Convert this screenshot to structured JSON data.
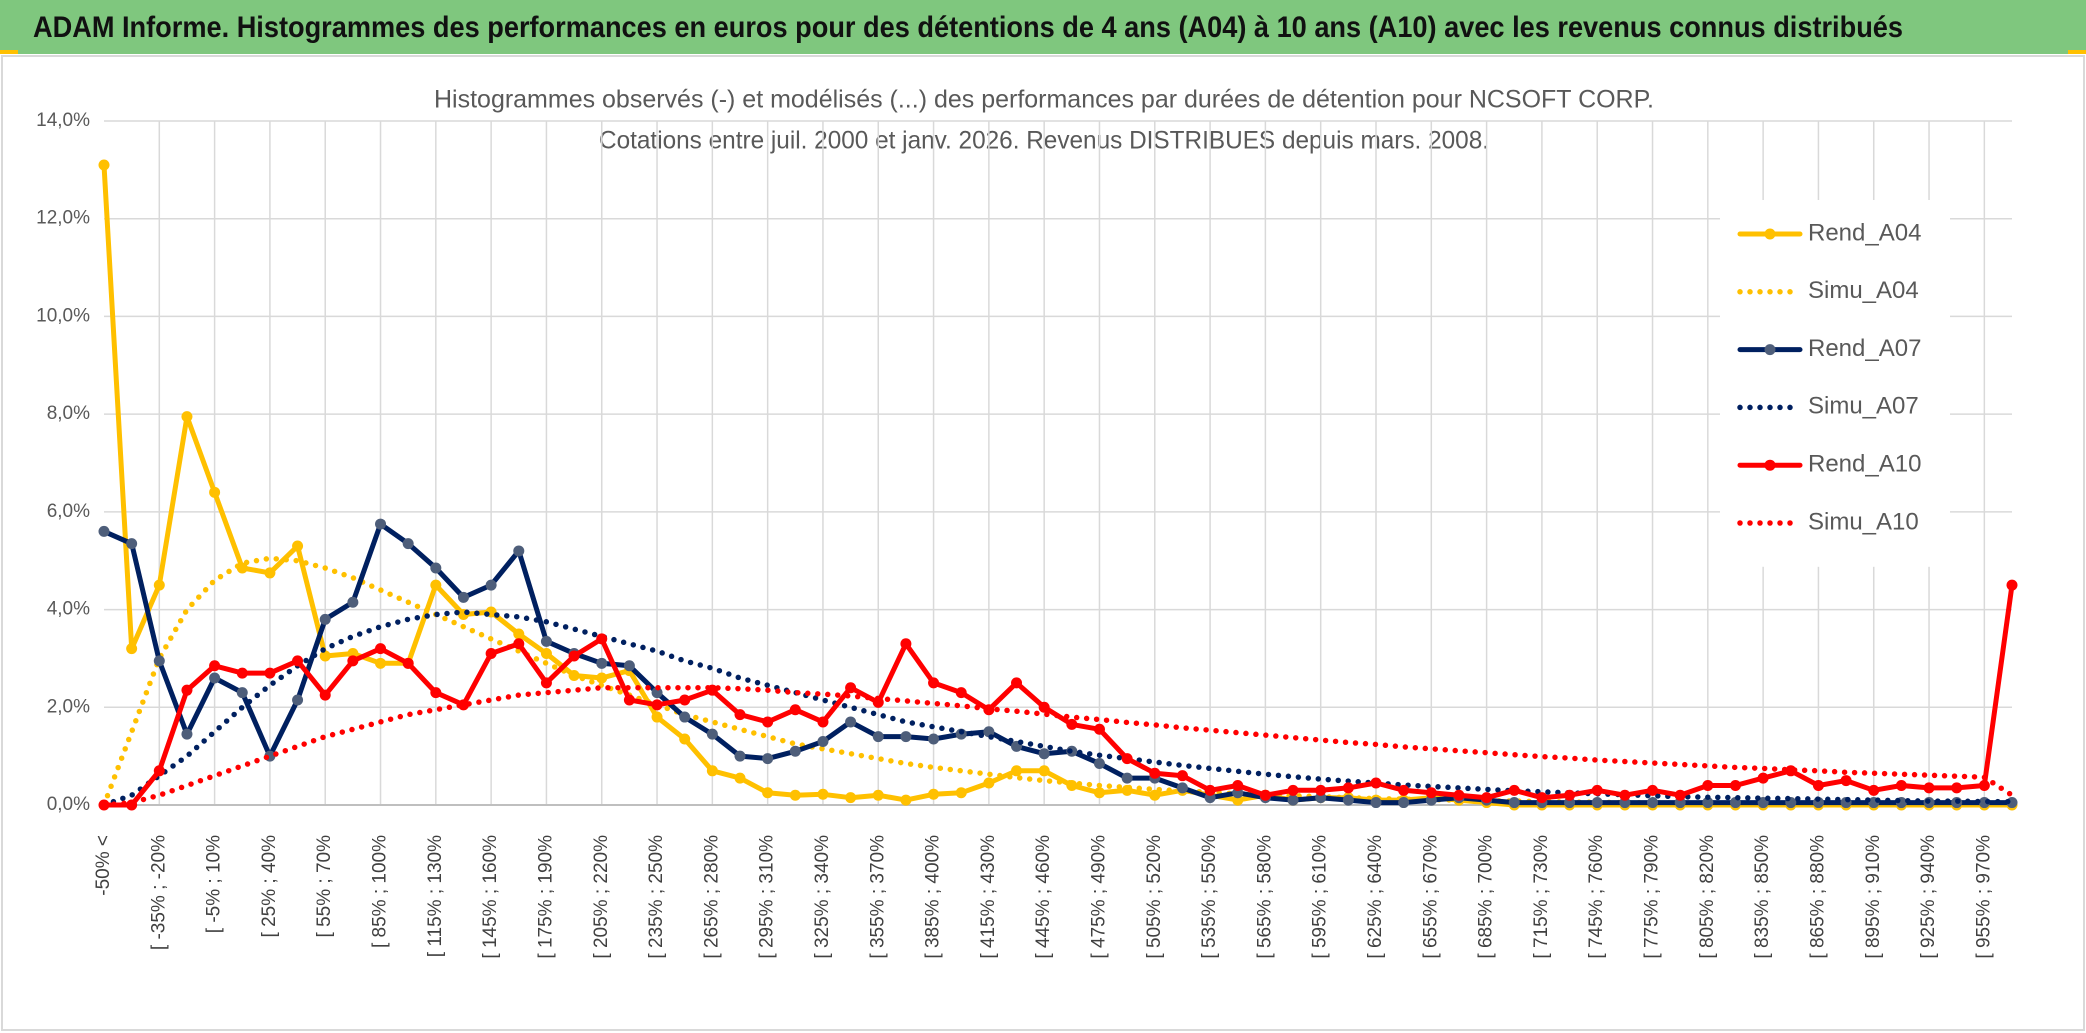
{
  "header": {
    "title": "ADAM Informe. Histogrammes des performances en euros pour des détentions de 4 ans (A04) à 10 ans (A10) avec les revenus connus distribués"
  },
  "chart_data": {
    "type": "line",
    "title": "Histogrammes observés (-) et modélisés (...) des performances par durées de détention pour NCSOFT CORP.",
    "subtitle": "Cotations entre juil. 2000 et janv. 2026. Revenus DISTRIBUES depuis mars. 2008.",
    "categories": [
      "-50% <",
      null,
      "[ -35% ; -20%",
      null,
      "[ -5% ; 10%",
      null,
      "[ 25% ; 40%",
      null,
      "[ 55% ; 70%",
      null,
      "[ 85% ; 100%",
      null,
      "[ 115% ; 130%",
      null,
      "[ 145% ; 160%",
      null,
      "[ 175% ; 190%",
      null,
      "[ 205% ; 220%",
      null,
      "[ 235% ; 250%",
      null,
      "[ 265% ; 280%",
      null,
      "[ 295% ; 310%",
      null,
      "[ 325% ; 340%",
      null,
      "[ 355% ; 370%",
      null,
      "[ 385% ; 400%",
      null,
      "[ 415% ; 430%",
      null,
      "[ 445% ; 460%",
      null,
      "[ 475% ; 490%",
      null,
      "[ 505% ; 520%",
      null,
      "[ 535% ; 550%",
      null,
      "[ 565% ; 580%",
      null,
      "[ 595% ; 610%",
      null,
      "[ 625% ; 640%",
      null,
      "[ 655% ; 670%",
      null,
      "[ 685% ; 700%",
      null,
      "[ 715% ; 730%",
      null,
      "[ 745% ; 760%",
      null,
      "[ 775% ; 790%",
      null,
      "[ 805% ; 820%",
      null,
      "[ 835% ; 850%",
      null,
      "[ 865% ; 880%",
      null,
      "[ 895% ; 910%",
      null,
      "[ 925% ; 940%",
      null,
      "[ 955% ; 970%",
      null
    ],
    "series": [
      {
        "name": "Rend_A04",
        "color": "#ffc000",
        "marker_color": "#ffc000",
        "style": "solid",
        "markers": true,
        "values": [
          13.1,
          3.2,
          4.5,
          7.95,
          6.4,
          4.85,
          4.75,
          5.3,
          3.05,
          3.1,
          2.9,
          2.9,
          4.5,
          3.9,
          3.95,
          3.5,
          3.1,
          2.65,
          2.6,
          2.75,
          1.8,
          1.35,
          0.7,
          0.55,
          0.25,
          0.2,
          0.22,
          0.15,
          0.2,
          0.1,
          0.22,
          0.25,
          0.45,
          0.7,
          0.7,
          0.4,
          0.25,
          0.3,
          0.2,
          0.3,
          0.2,
          0.1,
          0.2,
          0.1,
          0.15,
          0.15,
          0.1,
          0.1,
          0.15,
          0.1,
          0.05,
          0,
          0,
          0,
          0,
          0,
          0,
          0,
          0,
          0,
          0,
          0,
          0,
          0,
          0,
          0,
          0,
          0,
          0,
          0
        ]
      },
      {
        "name": "Simu_A04",
        "color": "#ffc000",
        "style": "dotted",
        "markers": false,
        "values": [
          0,
          1.5,
          3.0,
          4.0,
          4.6,
          4.95,
          5.05,
          5.0,
          4.85,
          4.65,
          4.4,
          4.15,
          3.9,
          3.65,
          3.4,
          3.15,
          2.9,
          2.65,
          2.45,
          2.25,
          2.05,
          1.85,
          1.7,
          1.55,
          1.4,
          1.25,
          1.15,
          1.05,
          0.95,
          0.85,
          0.77,
          0.7,
          0.63,
          0.56,
          0.5,
          0.45,
          0.4,
          0.36,
          0.32,
          0.29,
          0.26,
          0.23,
          0.21,
          0.19,
          0.17,
          0.15,
          0.13,
          0.12,
          0.11,
          0.1,
          0.09,
          0.08,
          0.07,
          0.06,
          0.06,
          0.05,
          0.05,
          0.04,
          0.04,
          0.03,
          0.03,
          0.03,
          0.02,
          0.02,
          0.02,
          0.02,
          0.01,
          0.01,
          0.01,
          0.01
        ]
      },
      {
        "name": "Rend_A07",
        "color": "#002060",
        "marker_color": "#4e5e7a",
        "style": "solid",
        "markers": true,
        "values": [
          5.6,
          5.35,
          2.95,
          1.45,
          2.6,
          2.3,
          1.0,
          2.15,
          3.8,
          4.15,
          5.75,
          5.35,
          4.85,
          4.25,
          4.5,
          5.2,
          3.35,
          3.1,
          2.9,
          2.85,
          2.3,
          1.8,
          1.45,
          1.0,
          0.95,
          1.1,
          1.3,
          1.7,
          1.4,
          1.4,
          1.35,
          1.45,
          1.5,
          1.2,
          1.05,
          1.1,
          0.85,
          0.55,
          0.55,
          0.35,
          0.15,
          0.25,
          0.15,
          0.1,
          0.15,
          0.1,
          0.05,
          0.05,
          0.1,
          0.15,
          0.1,
          0.05,
          0.05,
          0.05,
          0.05,
          0.05,
          0.05,
          0.05,
          0.05,
          0.05,
          0.05,
          0.05,
          0.05,
          0.05,
          0.05,
          0.05,
          0.05,
          0.05,
          0.05,
          0.05
        ]
      },
      {
        "name": "Simu_A07",
        "color": "#002060",
        "style": "dotted",
        "markers": false,
        "values": [
          0,
          0.2,
          0.6,
          1.0,
          1.5,
          2.0,
          2.45,
          2.85,
          3.2,
          3.45,
          3.65,
          3.8,
          3.9,
          3.95,
          3.9,
          3.85,
          3.75,
          3.6,
          3.45,
          3.3,
          3.15,
          2.95,
          2.8,
          2.6,
          2.45,
          2.3,
          2.15,
          2.0,
          1.85,
          1.7,
          1.6,
          1.5,
          1.4,
          1.3,
          1.2,
          1.1,
          1.02,
          0.95,
          0.88,
          0.81,
          0.75,
          0.69,
          0.63,
          0.58,
          0.53,
          0.49,
          0.45,
          0.41,
          0.38,
          0.35,
          0.32,
          0.29,
          0.27,
          0.25,
          0.23,
          0.21,
          0.19,
          0.17,
          0.16,
          0.15,
          0.14,
          0.13,
          0.12,
          0.11,
          0.1,
          0.09,
          0.08,
          0.08,
          0.07,
          0.07
        ]
      },
      {
        "name": "Rend_A10",
        "color": "#ff0000",
        "marker_color": "#ff0000",
        "style": "solid",
        "markers": true,
        "values": [
          0,
          0,
          0.7,
          2.35,
          2.85,
          2.7,
          2.7,
          2.95,
          2.25,
          2.95,
          3.2,
          2.9,
          2.3,
          2.05,
          3.1,
          3.3,
          2.5,
          3.05,
          3.4,
          2.15,
          2.05,
          2.15,
          2.35,
          1.85,
          1.7,
          1.95,
          1.7,
          2.4,
          2.1,
          3.3,
          2.5,
          2.3,
          1.95,
          2.5,
          2.0,
          1.65,
          1.55,
          0.95,
          0.65,
          0.6,
          0.3,
          0.4,
          0.2,
          0.3,
          0.3,
          0.35,
          0.45,
          0.3,
          0.25,
          0.2,
          0.15,
          0.3,
          0.15,
          0.2,
          0.3,
          0.2,
          0.3,
          0.2,
          0.4,
          0.4,
          0.55,
          0.7,
          0.4,
          0.5,
          0.3,
          0.4,
          0.35,
          0.35,
          0.4,
          4.5
        ]
      },
      {
        "name": "Simu_A10",
        "color": "#ff0000",
        "style": "dotted",
        "markers": false,
        "values": [
          0,
          0.05,
          0.2,
          0.4,
          0.6,
          0.8,
          1.0,
          1.2,
          1.4,
          1.55,
          1.7,
          1.85,
          1.95,
          2.05,
          2.15,
          2.25,
          2.3,
          2.35,
          2.4,
          2.4,
          2.4,
          2.4,
          2.4,
          2.38,
          2.35,
          2.3,
          2.27,
          2.23,
          2.18,
          2.13,
          2.08,
          2.03,
          1.97,
          1.92,
          1.86,
          1.8,
          1.75,
          1.69,
          1.64,
          1.58,
          1.53,
          1.48,
          1.43,
          1.38,
          1.33,
          1.28,
          1.24,
          1.19,
          1.15,
          1.11,
          1.07,
          1.03,
          0.99,
          0.96,
          0.92,
          0.89,
          0.86,
          0.83,
          0.8,
          0.77,
          0.75,
          0.72,
          0.7,
          0.67,
          0.65,
          0.63,
          0.61,
          0.59,
          0.57,
          0.2
        ]
      }
    ],
    "ylim": [
      0,
      14
    ],
    "yticks": [
      {
        "value": 0,
        "label": "0,0%"
      },
      {
        "value": 2,
        "label": "2,0%"
      },
      {
        "value": 4,
        "label": "4,0%"
      },
      {
        "value": 6,
        "label": "6,0%"
      },
      {
        "value": 8,
        "label": "8,0%"
      },
      {
        "value": 10,
        "label": "10,0%"
      },
      {
        "value": 12,
        "label": "12,0%"
      },
      {
        "value": 14,
        "label": "14,0%"
      }
    ],
    "grid": true,
    "legend": "right"
  }
}
